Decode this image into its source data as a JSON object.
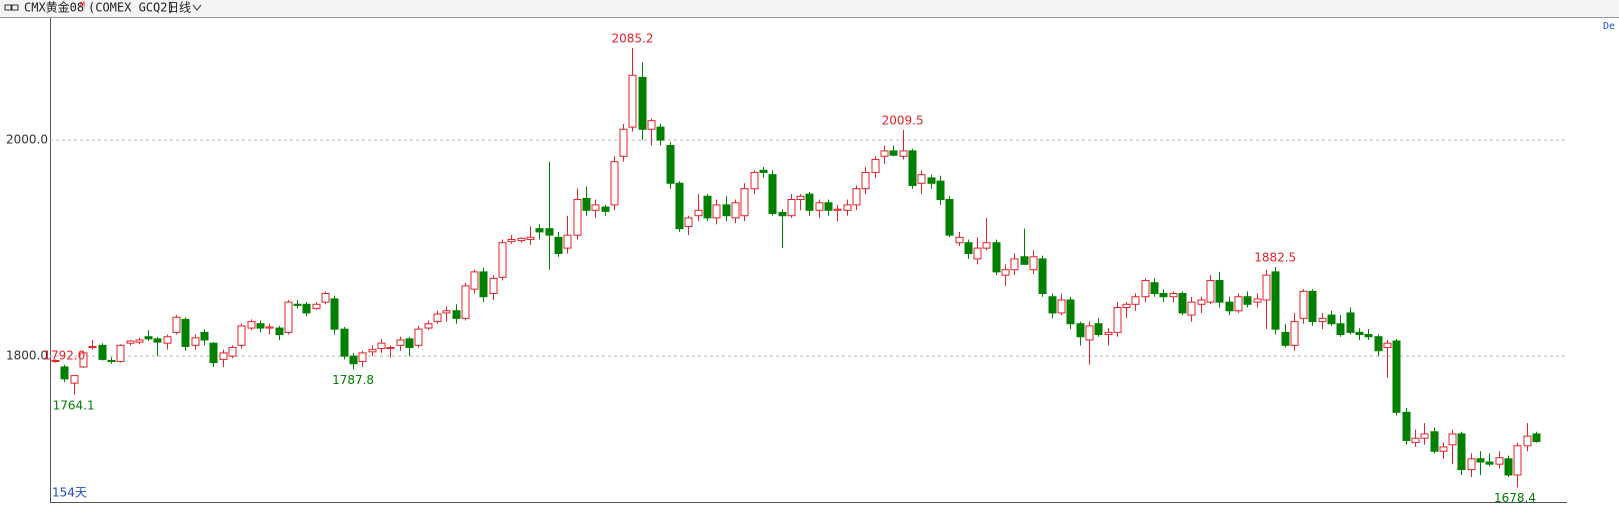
{
  "header": {
    "symbol": "CMX黄金08",
    "marker": "M",
    "code": "(COMEX GCQ2)",
    "period": "日线",
    "corner": "De"
  },
  "chart_data": {
    "type": "candlestick",
    "up_color": "#e8222a",
    "down_color": "#008000",
    "grid": true,
    "ylim": [
      1665,
      2113
    ],
    "yticks": [
      {
        "value": 1800,
        "label": "1800.0"
      },
      {
        "value": 2000,
        "label": "2000.0"
      }
    ],
    "footer": "154天",
    "annotations": [
      {
        "label": "1764.1",
        "value": 1764.1
      },
      {
        "label": "1787.8",
        "value": 1787.8
      },
      {
        "label": "2085.2",
        "value": 2085.2
      },
      {
        "label": "2009.5",
        "value": 2009.5
      },
      {
        "label": "1792.0",
        "value": 1792.0
      },
      {
        "label": "1882.5",
        "value": 1882.5
      },
      {
        "label": "1678.4",
        "value": 1678.4
      }
    ],
    "ohlc": [
      [
        1796,
        1797,
        1794,
        1796
      ],
      [
        1790,
        1792,
        1776,
        1779
      ],
      [
        1775,
        1782,
        1764.1,
        1782
      ],
      [
        1790,
        1805,
        1789,
        1803
      ],
      [
        1808,
        1815,
        1806,
        1809
      ],
      [
        1810,
        1812,
        1796,
        1797
      ],
      [
        1796,
        1799,
        1793,
        1795
      ],
      [
        1795,
        1811,
        1794,
        1810
      ],
      [
        1812,
        1815,
        1810,
        1814
      ],
      [
        1813,
        1817,
        1811,
        1815
      ],
      [
        1818,
        1824,
        1814,
        1816
      ],
      [
        1816,
        1818,
        1800,
        1813
      ],
      [
        1812,
        1820,
        1806,
        1818
      ],
      [
        1822,
        1838,
        1820,
        1836
      ],
      [
        1834,
        1836,
        1805,
        1809
      ],
      [
        1810,
        1820,
        1806,
        1817
      ],
      [
        1822,
        1825,
        1810,
        1815
      ],
      [
        1812,
        1813,
        1790,
        1794
      ],
      [
        1797,
        1806,
        1790,
        1803
      ],
      [
        1800,
        1810,
        1798,
        1808
      ],
      [
        1810,
        1830,
        1807,
        1828
      ],
      [
        1826,
        1834,
        1824,
        1832
      ],
      [
        1830,
        1833,
        1822,
        1826
      ],
      [
        1826,
        1830,
        1820,
        1827
      ],
      [
        1826,
        1828,
        1815,
        1820
      ],
      [
        1822,
        1852,
        1820,
        1850
      ],
      [
        1848,
        1852,
        1844,
        1847
      ],
      [
        1848,
        1850,
        1837,
        1840
      ],
      [
        1844,
        1850,
        1843,
        1848
      ],
      [
        1850,
        1860,
        1848,
        1858
      ],
      [
        1853,
        1856,
        1820,
        1825
      ],
      [
        1825,
        1827,
        1797,
        1800
      ],
      [
        1800,
        1803,
        1787.8,
        1793
      ],
      [
        1795,
        1805,
        1790,
        1803
      ],
      [
        1804,
        1810,
        1800,
        1806
      ],
      [
        1807,
        1816,
        1803,
        1812
      ],
      [
        1807,
        1810,
        1799,
        1808
      ],
      [
        1810,
        1818,
        1805,
        1815
      ],
      [
        1816,
        1818,
        1800,
        1808
      ],
      [
        1810,
        1828,
        1808,
        1825
      ],
      [
        1826,
        1833,
        1824,
        1830
      ],
      [
        1832,
        1842,
        1830,
        1839
      ],
      [
        1840,
        1846,
        1832,
        1842
      ],
      [
        1842,
        1848,
        1830,
        1835
      ],
      [
        1835,
        1868,
        1833,
        1865
      ],
      [
        1862,
        1880,
        1858,
        1878
      ],
      [
        1878,
        1882,
        1850,
        1855
      ],
      [
        1858,
        1875,
        1852,
        1872
      ],
      [
        1873,
        1908,
        1870,
        1905
      ],
      [
        1906,
        1912,
        1904,
        1908
      ],
      [
        1907,
        1910,
        1905,
        1909
      ],
      [
        1908,
        1920,
        1903,
        1910
      ],
      [
        1918,
        1922,
        1908,
        1915
      ],
      [
        1918,
        1980,
        1880,
        1912
      ],
      [
        1910,
        1915,
        1892,
        1895
      ],
      [
        1900,
        1930,
        1895,
        1912
      ],
      [
        1912,
        1955,
        1908,
        1945
      ],
      [
        1946,
        1957,
        1930,
        1935
      ],
      [
        1935,
        1945,
        1928,
        1940
      ],
      [
        1938,
        1940,
        1930,
        1934
      ],
      [
        1940,
        1985,
        1935,
        1980
      ],
      [
        1985,
        2015,
        1980,
        2010
      ],
      [
        2012,
        2085.2,
        2008,
        2060
      ],
      [
        2058,
        2072,
        2000,
        2010
      ],
      [
        2010,
        2020,
        1995,
        2018
      ],
      [
        2012,
        2015,
        1995,
        2000
      ],
      [
        1995,
        1998,
        1955,
        1960
      ],
      [
        1960,
        1962,
        1915,
        1918
      ],
      [
        1920,
        1930,
        1912,
        1928
      ],
      [
        1930,
        1950,
        1925,
        1935
      ],
      [
        1948,
        1950,
        1925,
        1928
      ],
      [
        1928,
        1945,
        1922,
        1940
      ],
      [
        1940,
        1948,
        1925,
        1930
      ],
      [
        1928,
        1945,
        1923,
        1942
      ],
      [
        1930,
        1960,
        1925,
        1955
      ],
      [
        1955,
        1972,
        1950,
        1970
      ],
      [
        1972,
        1975,
        1965,
        1970
      ],
      [
        1968,
        1972,
        1930,
        1932
      ],
      [
        1933,
        1936,
        1900,
        1930
      ],
      [
        1930,
        1950,
        1928,
        1945
      ],
      [
        1945,
        1950,
        1935,
        1948
      ],
      [
        1950,
        1952,
        1930,
        1935
      ],
      [
        1935,
        1945,
        1928,
        1942
      ],
      [
        1942,
        1945,
        1930,
        1935
      ],
      [
        1935,
        1940,
        1925,
        1936
      ],
      [
        1935,
        1945,
        1930,
        1940
      ],
      [
        1940,
        1958,
        1935,
        1955
      ],
      [
        1955,
        1975,
        1950,
        1970
      ],
      [
        1970,
        1985,
        1965,
        1982
      ],
      [
        1985,
        1995,
        1978,
        1990
      ],
      [
        1990,
        1995,
        1985,
        1986
      ],
      [
        1985,
        2009.5,
        1982,
        1990
      ],
      [
        1990,
        1992,
        1955,
        1958
      ],
      [
        1960,
        1972,
        1950,
        1968
      ],
      [
        1965,
        1968,
        1955,
        1960
      ],
      [
        1962,
        1967,
        1940,
        1945
      ],
      [
        1945,
        1948,
        1910,
        1912
      ],
      [
        1905,
        1915,
        1902,
        1910
      ],
      [
        1905,
        1908,
        1890,
        1895
      ],
      [
        1890,
        1910,
        1885,
        1900
      ],
      [
        1900,
        1928,
        1898,
        1905
      ],
      [
        1905,
        1908,
        1875,
        1878
      ],
      [
        1875,
        1885,
        1865,
        1880
      ],
      [
        1880,
        1895,
        1875,
        1890
      ],
      [
        1892,
        1918,
        1885,
        1885
      ],
      [
        1880,
        1898,
        1876,
        1892
      ],
      [
        1890,
        1893,
        1855,
        1858
      ],
      [
        1855,
        1858,
        1835,
        1840
      ],
      [
        1840,
        1858,
        1838,
        1852
      ],
      [
        1852,
        1855,
        1825,
        1830
      ],
      [
        1830,
        1832,
        1810,
        1818
      ],
      [
        1815,
        1832,
        1792.0,
        1828
      ],
      [
        1830,
        1835,
        1818,
        1820
      ],
      [
        1820,
        1826,
        1810,
        1822
      ],
      [
        1822,
        1850,
        1818,
        1845
      ],
      [
        1845,
        1850,
        1835,
        1848
      ],
      [
        1848,
        1858,
        1842,
        1855
      ],
      [
        1855,
        1872,
        1850,
        1870
      ],
      [
        1868,
        1872,
        1855,
        1858
      ],
      [
        1858,
        1862,
        1850,
        1855
      ],
      [
        1855,
        1860,
        1850,
        1858
      ],
      [
        1858,
        1860,
        1838,
        1840
      ],
      [
        1838,
        1855,
        1832,
        1850
      ],
      [
        1848,
        1855,
        1840,
        1852
      ],
      [
        1850,
        1875,
        1848,
        1870
      ],
      [
        1870,
        1878,
        1845,
        1850
      ],
      [
        1850,
        1855,
        1838,
        1842
      ],
      [
        1842,
        1858,
        1840,
        1855
      ],
      [
        1855,
        1860,
        1845,
        1848
      ],
      [
        1850,
        1858,
        1845,
        1853
      ],
      [
        1852,
        1880,
        1825,
        1875
      ],
      [
        1878,
        1882.5,
        1820,
        1825
      ],
      [
        1822,
        1830,
        1808,
        1810
      ],
      [
        1810,
        1840,
        1805,
        1832
      ],
      [
        1835,
        1862,
        1830,
        1860
      ],
      [
        1860,
        1862,
        1828,
        1832
      ],
      [
        1832,
        1840,
        1825,
        1835
      ],
      [
        1838,
        1842,
        1828,
        1830
      ],
      [
        1830,
        1838,
        1818,
        1820
      ],
      [
        1840,
        1845,
        1820,
        1822
      ],
      [
        1822,
        1826,
        1815,
        1820
      ],
      [
        1820,
        1825,
        1815,
        1818
      ],
      [
        1818,
        1820,
        1800,
        1805
      ],
      [
        1808,
        1815,
        1780,
        1812
      ],
      [
        1814,
        1816,
        1745,
        1748
      ],
      [
        1748,
        1752,
        1718,
        1722
      ],
      [
        1720,
        1732,
        1716,
        1724
      ],
      [
        1724,
        1738,
        1718,
        1728
      ],
      [
        1730,
        1734,
        1710,
        1712
      ],
      [
        1712,
        1720,
        1705,
        1716
      ],
      [
        1718,
        1732,
        1700,
        1728
      ],
      [
        1728,
        1730,
        1690,
        1695
      ],
      [
        1695,
        1710,
        1688,
        1705
      ],
      [
        1705,
        1712,
        1690,
        1702
      ],
      [
        1702,
        1710,
        1698,
        1700
      ],
      [
        1700,
        1712,
        1696,
        1706
      ],
      [
        1705,
        1708,
        1688,
        1690
      ],
      [
        1690,
        1720,
        1678.4,
        1717
      ],
      [
        1717,
        1738,
        1712,
        1726
      ],
      [
        1728,
        1730,
        1720,
        1721
      ]
    ]
  }
}
